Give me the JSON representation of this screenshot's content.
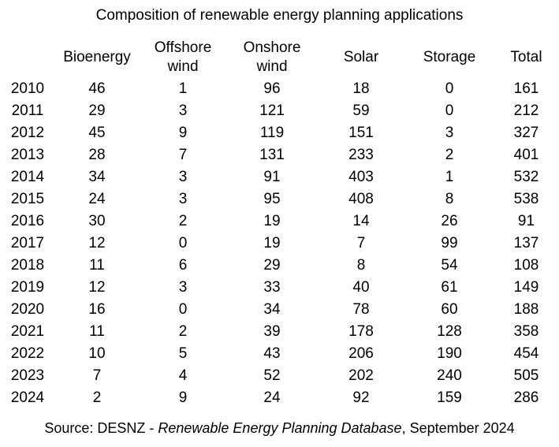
{
  "title": "Composition of renewable energy planning applications",
  "table": {
    "columns": [
      {
        "label": ""
      },
      {
        "label": "Bioenergy"
      },
      {
        "label": "Offshore\nwind"
      },
      {
        "label": "Onshore\nwind"
      },
      {
        "label": "Solar"
      },
      {
        "label": "Storage"
      },
      {
        "label": "Total"
      }
    ]
  },
  "chart_data": {
    "type": "table",
    "title": "Composition of renewable energy planning applications",
    "categories": [
      "2010",
      "2011",
      "2012",
      "2013",
      "2014",
      "2015",
      "2016",
      "2017",
      "2018",
      "2019",
      "2020",
      "2021",
      "2022",
      "2023",
      "2024"
    ],
    "series": [
      {
        "name": "Bioenergy",
        "values": [
          46,
          29,
          45,
          28,
          34,
          24,
          30,
          12,
          11,
          12,
          16,
          11,
          10,
          7,
          2
        ]
      },
      {
        "name": "Offshore wind",
        "values": [
          1,
          3,
          9,
          7,
          3,
          3,
          2,
          0,
          6,
          3,
          0,
          2,
          5,
          4,
          9
        ]
      },
      {
        "name": "Onshore wind",
        "values": [
          96,
          121,
          119,
          131,
          91,
          95,
          19,
          19,
          29,
          33,
          34,
          39,
          43,
          52,
          24
        ]
      },
      {
        "name": "Solar",
        "values": [
          18,
          59,
          151,
          233,
          403,
          408,
          14,
          7,
          8,
          40,
          78,
          178,
          206,
          202,
          92
        ]
      },
      {
        "name": "Storage",
        "values": [
          0,
          0,
          3,
          2,
          1,
          8,
          26,
          99,
          54,
          61,
          60,
          128,
          190,
          240,
          159
        ]
      },
      {
        "name": "Total",
        "values": [
          161,
          212,
          327,
          401,
          532,
          538,
          91,
          137,
          108,
          149,
          188,
          358,
          454,
          505,
          286
        ]
      }
    ],
    "layout": {
      "grid": false,
      "header_rows": 1,
      "first_column": "year"
    },
    "source": "Source: DESNZ - Renewable Energy Planning Database, September 2024"
  },
  "source": {
    "prefix": "Source: DESNZ - ",
    "italic": "Renewable Energy Planning Database",
    "suffix": ", September 2024"
  },
  "colors": {
    "text": "#000000",
    "background": "#ffffff"
  }
}
